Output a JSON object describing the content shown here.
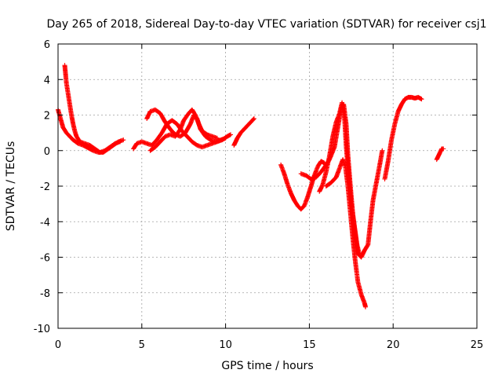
{
  "chart_data": {
    "type": "scatter",
    "title": "Day 265 of 2018, Sidereal Day-to-day VTEC variation (SDTVAR) for receiver csj1",
    "xlabel": "GPS time / hours",
    "ylabel": "SDTVAR / TECUs",
    "xlim": [
      0,
      25
    ],
    "ylim": [
      -10,
      6
    ],
    "xticks": [
      "0",
      "5",
      "10",
      "15",
      "20",
      "25"
    ],
    "yticks": [
      "-10",
      "-8",
      "-6",
      "-4",
      "-2",
      "0",
      "2",
      "4",
      "6"
    ],
    "grid": true,
    "marker": "plus",
    "color": "#ff0000",
    "series": [
      {
        "points": [
          [
            0.0,
            2.3
          ],
          [
            0.15,
            1.8
          ],
          [
            0.3,
            1.3
          ],
          [
            0.5,
            1.0
          ],
          [
            0.7,
            0.8
          ],
          [
            0.9,
            0.6
          ],
          [
            1.2,
            0.4
          ],
          [
            1.5,
            0.3
          ],
          [
            1.8,
            0.15
          ],
          [
            2.1,
            0.0
          ],
          [
            2.4,
            -0.1
          ],
          [
            2.7,
            -0.1
          ],
          [
            3.0,
            0.1
          ],
          [
            3.3,
            0.3
          ],
          [
            3.6,
            0.5
          ],
          [
            3.9,
            0.6
          ]
        ]
      },
      {
        "points": [
          [
            0.4,
            4.8
          ],
          [
            0.45,
            4.3
          ],
          [
            0.5,
            3.8
          ],
          [
            0.6,
            3.2
          ],
          [
            0.7,
            2.6
          ],
          [
            0.8,
            2.0
          ],
          [
            0.9,
            1.5
          ],
          [
            1.0,
            1.1
          ],
          [
            1.1,
            0.8
          ],
          [
            1.3,
            0.5
          ],
          [
            1.6,
            0.4
          ],
          [
            1.9,
            0.3
          ],
          [
            2.2,
            0.1
          ],
          [
            2.5,
            -0.1
          ],
          [
            2.8,
            0.0
          ],
          [
            3.1,
            0.2
          ],
          [
            3.4,
            0.4
          ],
          [
            3.7,
            0.5
          ]
        ]
      },
      {
        "points": [
          [
            4.5,
            0.1
          ],
          [
            4.7,
            0.4
          ],
          [
            5.0,
            0.5
          ],
          [
            5.3,
            0.4
          ],
          [
            5.6,
            0.3
          ],
          [
            5.9,
            0.6
          ],
          [
            6.2,
            1.0
          ],
          [
            6.5,
            1.5
          ],
          [
            6.8,
            1.7
          ],
          [
            7.1,
            1.5
          ],
          [
            7.4,
            1.1
          ],
          [
            7.7,
            0.8
          ],
          [
            8.0,
            0.5
          ],
          [
            8.3,
            0.3
          ],
          [
            8.6,
            0.2
          ],
          [
            8.9,
            0.3
          ],
          [
            9.2,
            0.4
          ],
          [
            9.5,
            0.5
          ],
          [
            9.8,
            0.6
          ],
          [
            10.1,
            0.8
          ],
          [
            10.3,
            0.9
          ]
        ]
      },
      {
        "points": [
          [
            5.3,
            1.8
          ],
          [
            5.5,
            2.2
          ],
          [
            5.8,
            2.3
          ],
          [
            6.1,
            2.1
          ],
          [
            6.4,
            1.6
          ],
          [
            6.7,
            1.2
          ],
          [
            7.0,
            0.9
          ],
          [
            7.3,
            0.8
          ],
          [
            7.6,
            1.0
          ],
          [
            7.9,
            1.5
          ],
          [
            8.1,
            2.0
          ],
          [
            8.3,
            1.8
          ],
          [
            8.5,
            1.2
          ],
          [
            8.8,
            0.8
          ],
          [
            9.1,
            0.6
          ],
          [
            9.4,
            0.5
          ],
          [
            9.7,
            0.6
          ],
          [
            10.0,
            0.7
          ]
        ]
      },
      {
        "points": [
          [
            5.5,
            0.0
          ],
          [
            5.8,
            0.2
          ],
          [
            6.1,
            0.5
          ],
          [
            6.4,
            0.8
          ],
          [
            6.7,
            0.9
          ],
          [
            7.0,
            0.8
          ],
          [
            7.3,
            1.2
          ],
          [
            7.5,
            1.7
          ],
          [
            7.8,
            2.1
          ],
          [
            8.0,
            2.3
          ],
          [
            8.2,
            2.0
          ],
          [
            8.4,
            1.5
          ],
          [
            8.6,
            1.1
          ],
          [
            8.9,
            0.9
          ],
          [
            9.2,
            0.8
          ],
          [
            9.5,
            0.7
          ]
        ]
      },
      {
        "points": [
          [
            10.5,
            0.3
          ],
          [
            10.7,
            0.7
          ],
          [
            10.9,
            1.0
          ],
          [
            11.1,
            1.2
          ],
          [
            11.3,
            1.4
          ],
          [
            11.5,
            1.6
          ],
          [
            11.7,
            1.8
          ]
        ]
      },
      {
        "points": [
          [
            13.3,
            -0.8
          ],
          [
            13.5,
            -1.3
          ],
          [
            13.7,
            -1.9
          ],
          [
            13.9,
            -2.4
          ],
          [
            14.1,
            -2.8
          ],
          [
            14.3,
            -3.1
          ],
          [
            14.5,
            -3.3
          ],
          [
            14.7,
            -3.1
          ],
          [
            14.9,
            -2.6
          ],
          [
            15.1,
            -2.0
          ],
          [
            15.3,
            -1.4
          ],
          [
            15.5,
            -0.9
          ],
          [
            15.7,
            -0.6
          ],
          [
            15.9,
            -0.7
          ]
        ]
      },
      {
        "points": [
          [
            14.5,
            -1.3
          ],
          [
            14.8,
            -1.4
          ],
          [
            15.1,
            -1.6
          ],
          [
            15.4,
            -1.5
          ],
          [
            15.7,
            -1.2
          ],
          [
            16.0,
            -0.8
          ],
          [
            16.2,
            -0.5
          ],
          [
            16.5,
            0.2
          ],
          [
            16.7,
            1.3
          ],
          [
            16.9,
            2.4
          ],
          [
            17.05,
            2.6
          ],
          [
            17.2,
            1.5
          ],
          [
            17.3,
            -0.2
          ],
          [
            17.45,
            -2.0
          ],
          [
            17.6,
            -3.6
          ],
          [
            17.75,
            -4.8
          ],
          [
            17.9,
            -5.8
          ],
          [
            18.1,
            -6.0
          ],
          [
            18.3,
            -5.6
          ],
          [
            18.5,
            -5.3
          ],
          [
            18.65,
            -4.0
          ],
          [
            18.8,
            -2.8
          ],
          [
            19.0,
            -1.8
          ],
          [
            19.2,
            -0.8
          ],
          [
            19.35,
            0.0
          ]
        ]
      },
      {
        "points": [
          [
            15.6,
            -2.3
          ],
          [
            15.8,
            -1.9
          ],
          [
            16.0,
            -1.2
          ],
          [
            16.2,
            -0.3
          ],
          [
            16.4,
            0.8
          ],
          [
            16.6,
            1.6
          ],
          [
            16.8,
            2.1
          ],
          [
            16.95,
            2.7
          ],
          [
            17.1,
            1.8
          ],
          [
            17.2,
            0.2
          ],
          [
            17.35,
            -1.5
          ],
          [
            17.5,
            -3.0
          ],
          [
            17.7,
            -4.3
          ],
          [
            17.85,
            -5.3
          ],
          [
            18.0,
            -5.9
          ]
        ]
      },
      {
        "points": [
          [
            16.0,
            -2.0
          ],
          [
            16.3,
            -1.8
          ],
          [
            16.6,
            -1.5
          ],
          [
            16.8,
            -1.0
          ],
          [
            17.0,
            -0.5
          ],
          [
            17.15,
            -0.9
          ],
          [
            17.3,
            -2.0
          ],
          [
            17.45,
            -3.5
          ],
          [
            17.6,
            -5.0
          ],
          [
            17.75,
            -6.3
          ],
          [
            17.9,
            -7.4
          ],
          [
            18.1,
            -8.1
          ],
          [
            18.3,
            -8.6
          ],
          [
            18.35,
            -8.8
          ]
        ]
      },
      {
        "points": [
          [
            19.5,
            -1.6
          ],
          [
            19.7,
            -0.6
          ],
          [
            19.9,
            0.6
          ],
          [
            20.1,
            1.5
          ],
          [
            20.3,
            2.2
          ],
          [
            20.5,
            2.6
          ],
          [
            20.7,
            2.9
          ],
          [
            20.9,
            3.0
          ],
          [
            21.1,
            3.0
          ],
          [
            21.3,
            2.95
          ],
          [
            21.5,
            3.0
          ],
          [
            21.7,
            2.9
          ]
        ]
      },
      {
        "points": [
          [
            22.6,
            -0.5
          ],
          [
            22.7,
            -0.3
          ],
          [
            22.8,
            -0.1
          ],
          [
            22.9,
            0.1
          ],
          [
            23.0,
            0.1
          ]
        ]
      }
    ]
  }
}
